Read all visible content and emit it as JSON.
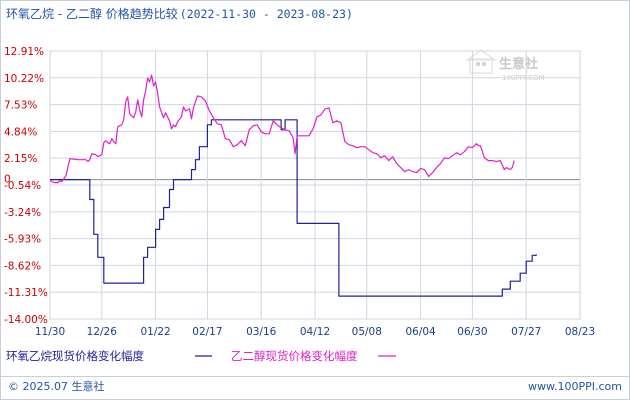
{
  "header": {
    "title": "环氧乙烷 - 乙二醇 价格趋势比较",
    "date_range": "(2022-11-30 - 2023-08-23)"
  },
  "watermark": {
    "brand": "生意社",
    "url": "100PPI.COM"
  },
  "footer": {
    "copyright": "© 2025.07 生意社",
    "site": "www.100PPI.com"
  },
  "colors": {
    "series_1": "#1f1fa0",
    "series_2": "#e020c8",
    "grid": "#cfd6e2",
    "zero_line": "#888888",
    "tick_text": "#cc0000",
    "x_tick_text": "#1a3f8f"
  },
  "chart_data": {
    "type": "line",
    "ylim": [
      -14.0,
      12.91
    ],
    "y_ticks": [
      "12.91%",
      "10.22%",
      "7.53%",
      "4.84%",
      "2.15%",
      "-0.54%",
      "-3.24%",
      "-5.93%",
      "-8.62%",
      "-11.31%",
      "-14.00%"
    ],
    "y_tick_values": [
      12.91,
      10.22,
      7.53,
      4.84,
      2.15,
      -0.54,
      -3.24,
      -5.93,
      -8.62,
      -11.31,
      -14.0
    ],
    "zero_label": "0",
    "x_ticks": [
      "11/30",
      "12/26",
      "01/22",
      "02/17",
      "03/16",
      "04/12",
      "05/08",
      "06/04",
      "06/30",
      "07/27",
      "08/23"
    ],
    "x_tick_days": [
      0,
      26,
      53,
      79,
      106,
      133,
      159,
      186,
      212,
      239,
      266
    ],
    "series": [
      {
        "name": "环氧乙烷现货价格变化幅度",
        "points": [
          [
            0,
            0
          ],
          [
            20,
            0
          ],
          [
            20,
            -2.0
          ],
          [
            22,
            -2.0
          ],
          [
            22,
            -5.5
          ],
          [
            24,
            -5.5
          ],
          [
            24,
            -7.8
          ],
          [
            27,
            -7.8
          ],
          [
            27,
            -10.4
          ],
          [
            47,
            -10.4
          ],
          [
            47,
            -7.8
          ],
          [
            49,
            -7.8
          ],
          [
            49,
            -6.8
          ],
          [
            53,
            -6.8
          ],
          [
            53,
            -5.0
          ],
          [
            55,
            -5.0
          ],
          [
            55,
            -4.0
          ],
          [
            57,
            -4.0
          ],
          [
            57,
            -2.8
          ],
          [
            60,
            -2.8
          ],
          [
            60,
            -1.0
          ],
          [
            62,
            -1.0
          ],
          [
            62,
            0
          ],
          [
            71,
            0
          ],
          [
            71,
            1.0
          ],
          [
            73,
            1.0
          ],
          [
            73,
            2.0
          ],
          [
            75,
            2.0
          ],
          [
            75,
            3.3
          ],
          [
            79,
            3.3
          ],
          [
            79,
            5.5
          ],
          [
            81,
            5.5
          ],
          [
            81,
            6.0
          ],
          [
            116,
            6.0
          ],
          [
            116,
            5.0
          ],
          [
            118,
            5.0
          ],
          [
            118,
            6.0
          ],
          [
            124,
            6.0
          ],
          [
            124,
            -4.4
          ],
          [
            145,
            -4.4
          ],
          [
            145,
            -11.7
          ],
          [
            203,
            -11.7
          ],
          [
            203,
            -11.7
          ],
          [
            227,
            -11.7
          ],
          [
            227,
            -11.0
          ],
          [
            231,
            -11.0
          ],
          [
            231,
            -10.2
          ],
          [
            236,
            -10.2
          ],
          [
            236,
            -9.4
          ],
          [
            239,
            -9.4
          ],
          [
            239,
            -8.2
          ],
          [
            242,
            -8.2
          ],
          [
            242,
            -7.6
          ],
          [
            244,
            -7.6
          ],
          [
            244,
            -7.5
          ]
        ]
      },
      {
        "name": "乙二醇现货价格变化幅度",
        "points": [
          [
            0,
            -0.1
          ],
          [
            2,
            -0.3
          ],
          [
            4,
            -0.3
          ],
          [
            5,
            -0.1
          ],
          [
            6,
            -0.2
          ],
          [
            8,
            0.4
          ],
          [
            10,
            2.1
          ],
          [
            14,
            2.0
          ],
          [
            17,
            2.0
          ],
          [
            18,
            2.0
          ],
          [
            19,
            1.8
          ],
          [
            20,
            2.0
          ],
          [
            21,
            2.6
          ],
          [
            23,
            2.5
          ],
          [
            24,
            2.3
          ],
          [
            26,
            2.5
          ],
          [
            27,
            3.7
          ],
          [
            28,
            3.9
          ],
          [
            29,
            3.7
          ],
          [
            30,
            3.6
          ],
          [
            31,
            4.1
          ],
          [
            32,
            3.8
          ],
          [
            33,
            3.6
          ],
          [
            34,
            5.3
          ],
          [
            36,
            5.5
          ],
          [
            37,
            6.0
          ],
          [
            38,
            7.8
          ],
          [
            39,
            8.3
          ],
          [
            40,
            6.6
          ],
          [
            42,
            6.2
          ],
          [
            43,
            6.8
          ],
          [
            44,
            8.0
          ],
          [
            45,
            7.0
          ],
          [
            46,
            6.3
          ],
          [
            47,
            8.0
          ],
          [
            48,
            8.9
          ],
          [
            49,
            10.2
          ],
          [
            50,
            9.8
          ],
          [
            51,
            10.5
          ],
          [
            52,
            9.4
          ],
          [
            53,
            9.8
          ],
          [
            54,
            8.7
          ],
          [
            55,
            7.3
          ],
          [
            57,
            6.2
          ],
          [
            58,
            6.7
          ],
          [
            60,
            5.9
          ],
          [
            61,
            5.1
          ],
          [
            62,
            5.5
          ],
          [
            63,
            5.3
          ],
          [
            64,
            5.8
          ],
          [
            66,
            6.3
          ],
          [
            67,
            7.3
          ],
          [
            68,
            6.9
          ],
          [
            70,
            7.1
          ],
          [
            71,
            6.1
          ],
          [
            72,
            7.2
          ],
          [
            74,
            8.4
          ],
          [
            76,
            8.3
          ],
          [
            78,
            7.9
          ],
          [
            80,
            6.9
          ],
          [
            82,
            6.2
          ],
          [
            84,
            5.6
          ],
          [
            86,
            5.5
          ],
          [
            88,
            4.1
          ],
          [
            90,
            4.0
          ],
          [
            92,
            3.3
          ],
          [
            94,
            3.5
          ],
          [
            96,
            3.9
          ],
          [
            98,
            3.4
          ],
          [
            100,
            5.0
          ],
          [
            102,
            5.4
          ],
          [
            104,
            5.5
          ],
          [
            106,
            4.8
          ],
          [
            108,
            4.6
          ],
          [
            110,
            4.6
          ],
          [
            112,
            5.9
          ],
          [
            114,
            5.5
          ],
          [
            116,
            5.2
          ],
          [
            118,
            5.0
          ],
          [
            120,
            4.9
          ],
          [
            122,
            4.2
          ],
          [
            123,
            2.6
          ],
          [
            124,
            4.4
          ],
          [
            127,
            4.4
          ],
          [
            130,
            4.4
          ],
          [
            132,
            5.1
          ],
          [
            134,
            6.3
          ],
          [
            136,
            6.5
          ],
          [
            138,
            7.1
          ],
          [
            140,
            7.2
          ],
          [
            142,
            5.7
          ],
          [
            144,
            5.9
          ],
          [
            146,
            5.7
          ],
          [
            148,
            3.8
          ],
          [
            150,
            3.5
          ],
          [
            152,
            3.4
          ],
          [
            154,
            3.2
          ],
          [
            156,
            3.3
          ],
          [
            158,
            3.3
          ],
          [
            160,
            3.0
          ],
          [
            162,
            2.7
          ],
          [
            164,
            2.6
          ],
          [
            166,
            2.2
          ],
          [
            168,
            2.4
          ],
          [
            170,
            1.9
          ],
          [
            172,
            2.3
          ],
          [
            174,
            1.6
          ],
          [
            176,
            1.2
          ],
          [
            178,
            0.8
          ],
          [
            180,
            1.0
          ],
          [
            182,
            0.8
          ],
          [
            184,
            0.7
          ],
          [
            186,
            1.1
          ],
          [
            188,
            1.0
          ],
          [
            190,
            0.3
          ],
          [
            192,
            0.7
          ],
          [
            194,
            1.2
          ],
          [
            196,
            1.6
          ],
          [
            198,
            2.2
          ],
          [
            200,
            2.1
          ],
          [
            202,
            2.4
          ],
          [
            204,
            2.7
          ],
          [
            206,
            2.5
          ],
          [
            208,
            2.8
          ],
          [
            210,
            3.3
          ],
          [
            212,
            3.2
          ],
          [
            214,
            3.6
          ],
          [
            215,
            3.4
          ],
          [
            216,
            3.4
          ],
          [
            218,
            2.2
          ],
          [
            220,
            1.9
          ],
          [
            222,
            1.9
          ],
          [
            224,
            1.8
          ],
          [
            226,
            1.9
          ],
          [
            228,
            1.0
          ],
          [
            229,
            1.2
          ],
          [
            230,
            1.1
          ],
          [
            231,
            1.0
          ],
          [
            232,
            1.2
          ],
          [
            233,
            1.9
          ]
        ]
      }
    ]
  }
}
